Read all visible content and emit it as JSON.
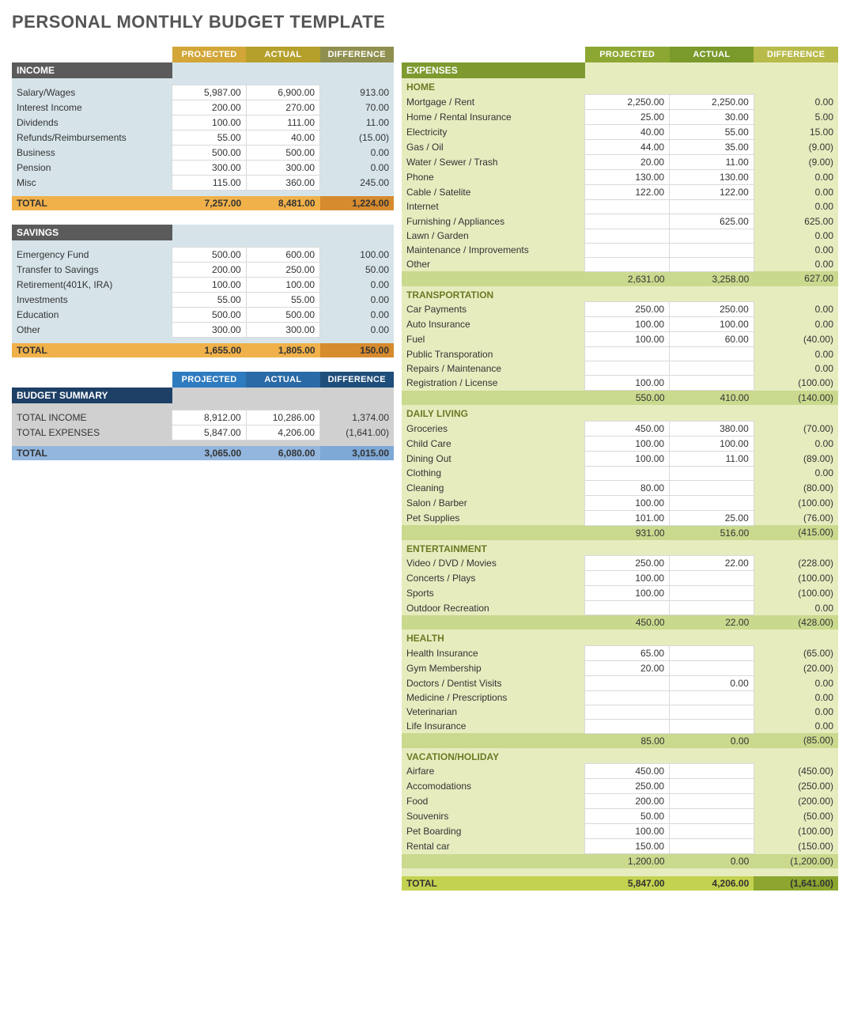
{
  "title": "PERSONAL MONTHLY BUDGET TEMPLATE",
  "headers": {
    "projected": "PROJECTED",
    "actual": "ACTUAL",
    "difference": "DIFFERENCE"
  },
  "colors": {
    "left_bg": "#d6e4ea",
    "right_bg": "#e7ecbf",
    "income_pill_proj": "#d2a637",
    "income_pill_act": "#b4a02b",
    "income_pill_diff": "#8f8f50",
    "income_bar": "#5b5b5b",
    "income_total_bg": "#f0b14a",
    "income_total_diff_bg": "#d68b2e",
    "summary_pill_proj": "#2f7bbf",
    "summary_pill_act": "#2a6aa6",
    "summary_pill_diff": "#1f4e7a",
    "summary_bar": "#1e3f66",
    "summary_body_bg": "#d0d0d0",
    "summary_total_bg": "#93b6de",
    "summary_total_diff_bg": "#7ea8d6",
    "expense_pill_proj": "#8da832",
    "expense_pill_act": "#7a9a2c",
    "expense_pill_diff": "#b8bb4a",
    "expense_bar": "#7e9a2f",
    "expense_subtotal_bg": "#c9d98e",
    "expense_total_bg": "#c3d24f",
    "expense_total_diff_bg": "#8ca62f"
  },
  "left": {
    "income": {
      "title": "INCOME",
      "rows": [
        {
          "label": "Salary/Wages",
          "p": "5,987.00",
          "a": "6,900.00",
          "d": "913.00"
        },
        {
          "label": "Interest Income",
          "p": "200.00",
          "a": "270.00",
          "d": "70.00"
        },
        {
          "label": "Dividends",
          "p": "100.00",
          "a": "111.00",
          "d": "11.00"
        },
        {
          "label": "Refunds/Reimbursements",
          "p": "55.00",
          "a": "40.00",
          "d": "(15.00)"
        },
        {
          "label": "Business",
          "p": "500.00",
          "a": "500.00",
          "d": "0.00"
        },
        {
          "label": "Pension",
          "p": "300.00",
          "a": "300.00",
          "d": "0.00"
        },
        {
          "label": "Misc",
          "p": "115.00",
          "a": "360.00",
          "d": "245.00"
        }
      ],
      "total": {
        "label": "TOTAL",
        "p": "7,257.00",
        "a": "8,481.00",
        "d": "1,224.00"
      }
    },
    "savings": {
      "title": "SAVINGS",
      "rows": [
        {
          "label": "Emergency Fund",
          "p": "500.00",
          "a": "600.00",
          "d": "100.00"
        },
        {
          "label": "Transfer to Savings",
          "p": "200.00",
          "a": "250.00",
          "d": "50.00"
        },
        {
          "label": "Retirement(401K, IRA)",
          "p": "100.00",
          "a": "100.00",
          "d": "0.00"
        },
        {
          "label": "Investments",
          "p": "55.00",
          "a": "55.00",
          "d": "0.00"
        },
        {
          "label": "Education",
          "p": "500.00",
          "a": "500.00",
          "d": "0.00"
        },
        {
          "label": "Other",
          "p": "300.00",
          "a": "300.00",
          "d": "0.00"
        }
      ],
      "total": {
        "label": "TOTAL",
        "p": "1,655.00",
        "a": "1,805.00",
        "d": "150.00"
      }
    },
    "summary": {
      "title": "BUDGET SUMMARY",
      "rows": [
        {
          "label": "TOTAL INCOME",
          "p": "8,912.00",
          "a": "10,286.00",
          "d": "1,374.00"
        },
        {
          "label": "TOTAL EXPENSES",
          "p": "5,847.00",
          "a": "4,206.00",
          "d": "(1,641.00)"
        }
      ],
      "total": {
        "label": "TOTAL",
        "p": "3,065.00",
        "a": "6,080.00",
        "d": "3,015.00"
      }
    }
  },
  "right": {
    "title": "EXPENSES",
    "groups": [
      {
        "title": "HOME",
        "rows": [
          {
            "label": "Mortgage / Rent",
            "p": "2,250.00",
            "a": "2,250.00",
            "d": "0.00"
          },
          {
            "label": "Home / Rental Insurance",
            "p": "25.00",
            "a": "30.00",
            "d": "5.00"
          },
          {
            "label": "Electricity",
            "p": "40.00",
            "a": "55.00",
            "d": "15.00"
          },
          {
            "label": "Gas / Oil",
            "p": "44.00",
            "a": "35.00",
            "d": "(9.00)"
          },
          {
            "label": "Water / Sewer / Trash",
            "p": "20.00",
            "a": "11.00",
            "d": "(9.00)"
          },
          {
            "label": "Phone",
            "p": "130.00",
            "a": "130.00",
            "d": "0.00"
          },
          {
            "label": "Cable / Satelite",
            "p": "122.00",
            "a": "122.00",
            "d": "0.00"
          },
          {
            "label": "Internet",
            "p": "",
            "a": "",
            "d": "0.00"
          },
          {
            "label": "Furnishing / Appliances",
            "p": "",
            "a": "625.00",
            "d": "625.00"
          },
          {
            "label": "Lawn / Garden",
            "p": "",
            "a": "",
            "d": "0.00"
          },
          {
            "label": "Maintenance / Improvements",
            "p": "",
            "a": "",
            "d": "0.00"
          },
          {
            "label": "Other",
            "p": "",
            "a": "",
            "d": "0.00"
          }
        ],
        "subtotal": {
          "p": "2,631.00",
          "a": "3,258.00",
          "d": "627.00"
        }
      },
      {
        "title": "TRANSPORTATION",
        "rows": [
          {
            "label": "Car Payments",
            "p": "250.00",
            "a": "250.00",
            "d": "0.00"
          },
          {
            "label": "Auto Insurance",
            "p": "100.00",
            "a": "100.00",
            "d": "0.00"
          },
          {
            "label": "Fuel",
            "p": "100.00",
            "a": "60.00",
            "d": "(40.00)"
          },
          {
            "label": "Public Transporation",
            "p": "",
            "a": "",
            "d": "0.00"
          },
          {
            "label": "Repairs / Maintenance",
            "p": "",
            "a": "",
            "d": "0.00"
          },
          {
            "label": "Registration / License",
            "p": "100.00",
            "a": "",
            "d": "(100.00)"
          }
        ],
        "subtotal": {
          "p": "550.00",
          "a": "410.00",
          "d": "(140.00)"
        }
      },
      {
        "title": "DAILY LIVING",
        "rows": [
          {
            "label": "Groceries",
            "p": "450.00",
            "a": "380.00",
            "d": "(70.00)"
          },
          {
            "label": "Child Care",
            "p": "100.00",
            "a": "100.00",
            "d": "0.00"
          },
          {
            "label": "Dining Out",
            "p": "100.00",
            "a": "11.00",
            "d": "(89.00)"
          },
          {
            "label": "Clothing",
            "p": "",
            "a": "",
            "d": "0.00"
          },
          {
            "label": "Cleaning",
            "p": "80.00",
            "a": "",
            "d": "(80.00)"
          },
          {
            "label": "Salon / Barber",
            "p": "100.00",
            "a": "",
            "d": "(100.00)"
          },
          {
            "label": "Pet Supplies",
            "p": "101.00",
            "a": "25.00",
            "d": "(76.00)"
          }
        ],
        "subtotal": {
          "p": "931.00",
          "a": "516.00",
          "d": "(415.00)"
        }
      },
      {
        "title": "ENTERTAINMENT",
        "rows": [
          {
            "label": "Video / DVD / Movies",
            "p": "250.00",
            "a": "22.00",
            "d": "(228.00)"
          },
          {
            "label": "Concerts / Plays",
            "p": "100.00",
            "a": "",
            "d": "(100.00)"
          },
          {
            "label": "Sports",
            "p": "100.00",
            "a": "",
            "d": "(100.00)"
          },
          {
            "label": "Outdoor Recreation",
            "p": "",
            "a": "",
            "d": "0.00"
          }
        ],
        "subtotal": {
          "p": "450.00",
          "a": "22.00",
          "d": "(428.00)"
        }
      },
      {
        "title": "HEALTH",
        "rows": [
          {
            "label": "Health Insurance",
            "p": "65.00",
            "a": "",
            "d": "(65.00)"
          },
          {
            "label": "Gym Membership",
            "p": "20.00",
            "a": "",
            "d": "(20.00)"
          },
          {
            "label": "Doctors / Dentist Visits",
            "p": "",
            "a": "0.00",
            "d": "0.00"
          },
          {
            "label": "Medicine / Prescriptions",
            "p": "",
            "a": "",
            "d": "0.00"
          },
          {
            "label": "Veterinarian",
            "p": "",
            "a": "",
            "d": "0.00"
          },
          {
            "label": "Life Insurance",
            "p": "",
            "a": "",
            "d": "0.00"
          }
        ],
        "subtotal": {
          "p": "85.00",
          "a": "0.00",
          "d": "(85.00)"
        }
      },
      {
        "title": "VACATION/HOLIDAY",
        "rows": [
          {
            "label": "Airfare",
            "p": "450.00",
            "a": "",
            "d": "(450.00)"
          },
          {
            "label": "Accomodations",
            "p": "250.00",
            "a": "",
            "d": "(250.00)"
          },
          {
            "label": "Food",
            "p": "200.00",
            "a": "",
            "d": "(200.00)"
          },
          {
            "label": "Souvenirs",
            "p": "50.00",
            "a": "",
            "d": "(50.00)"
          },
          {
            "label": "Pet Boarding",
            "p": "100.00",
            "a": "",
            "d": "(100.00)"
          },
          {
            "label": "Rental car",
            "p": "150.00",
            "a": "",
            "d": "(150.00)"
          }
        ],
        "subtotal": {
          "p": "1,200.00",
          "a": "0.00",
          "d": "(1,200.00)"
        }
      }
    ],
    "total": {
      "label": "TOTAL",
      "p": "5,847.00",
      "a": "4,206.00",
      "d": "(1,641.00)"
    }
  }
}
